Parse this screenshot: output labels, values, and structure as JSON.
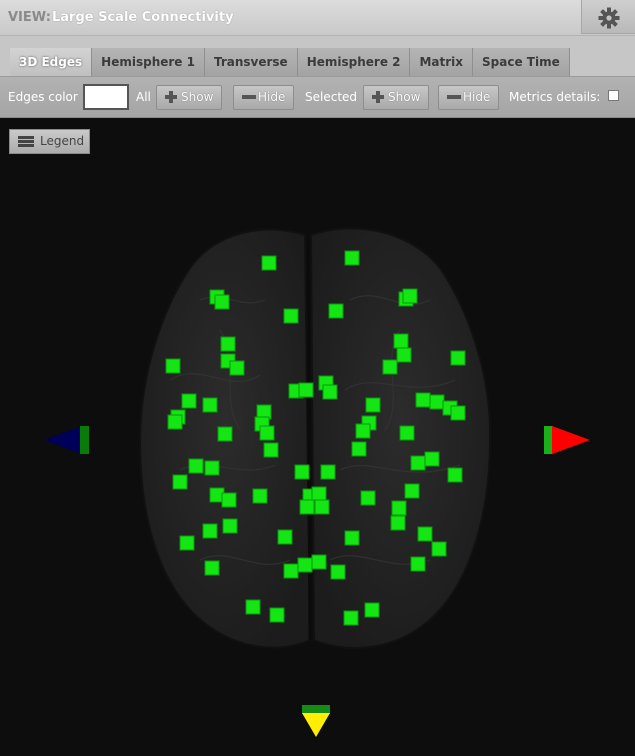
{
  "header": {
    "view_prefix": "VIEW:",
    "title": "Large Scale Connectivity",
    "settings_icon": "gear-icon"
  },
  "tabs": [
    {
      "label": "3D Edges",
      "active": true
    },
    {
      "label": "Hemisphere 1",
      "active": false
    },
    {
      "label": "Transverse",
      "active": false
    },
    {
      "label": "Hemisphere 2",
      "active": false
    },
    {
      "label": "Matrix",
      "active": false
    },
    {
      "label": "Space Time",
      "active": false
    }
  ],
  "toolbar": {
    "edges_color_label": "Edges color",
    "edges_color_value": "#ffffff",
    "all_label": "All",
    "selected_label": "Selected",
    "show_label": "Show",
    "hide_label": "Hide",
    "metrics_label": "Metrics details:",
    "metrics_checked": false
  },
  "legend": {
    "label": "Legend",
    "icon": "list-icon"
  },
  "colors": {
    "node": "#13e613",
    "brain": "#262626",
    "axis_x": "#ff0000",
    "axis_y": "#ffee00",
    "axis_neg_x": "#00005a"
  }
}
